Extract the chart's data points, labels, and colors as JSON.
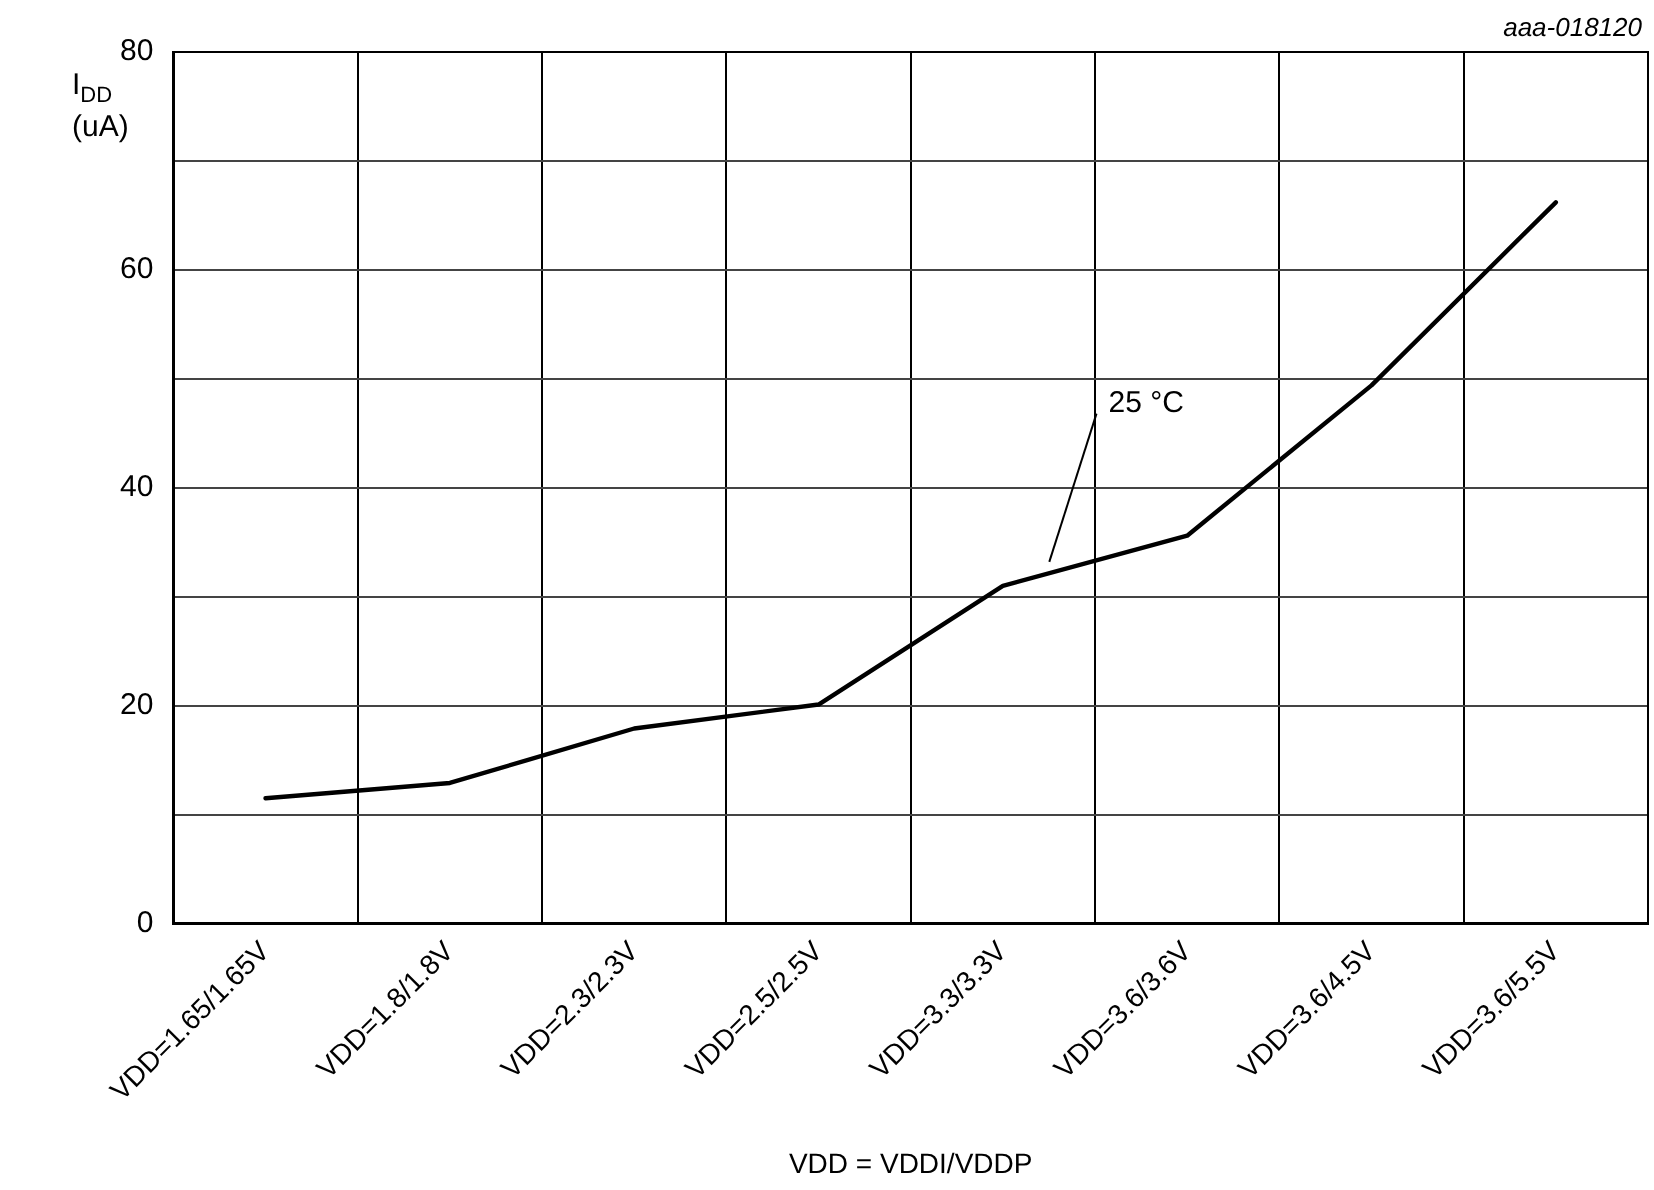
{
  "chart_data": {
    "type": "line",
    "categories": [
      "VDD=1.65/1.65V",
      "VDD=1.8/1.8V",
      "VDD=2.3/2.3V",
      "VDD=2.5/2.5V",
      "VDD=3.3/3.3V",
      "VDD=3.6/3.6V",
      "VDD=3.6/4.5V",
      "VDD=3.6/5.5V"
    ],
    "series": [
      {
        "color": "#000000",
        "values": [
          11.5,
          12.9,
          17.9,
          20.1,
          31.0,
          35.6,
          49.4,
          66.2
        ]
      }
    ],
    "xlabel": "VDD = VDDI/VDDP",
    "ylabel": "I$_{DD}$ (uA)",
    "ylim": [
      0,
      80
    ],
    "yticks": [
      0,
      {
        "value": 10,
        "label": null
      },
      20,
      {
        "value": 30,
        "label": null
      },
      40,
      {
        "value": 50,
        "label": null
      },
      60,
      {
        "value": 70,
        "label": null
      },
      80
    ],
    "grid": true,
    "legend": false,
    "marker": "none",
    "line_style": "solid",
    "annotations": [
      "25 °C",
      "aaa-018120"
    ]
  }
}
